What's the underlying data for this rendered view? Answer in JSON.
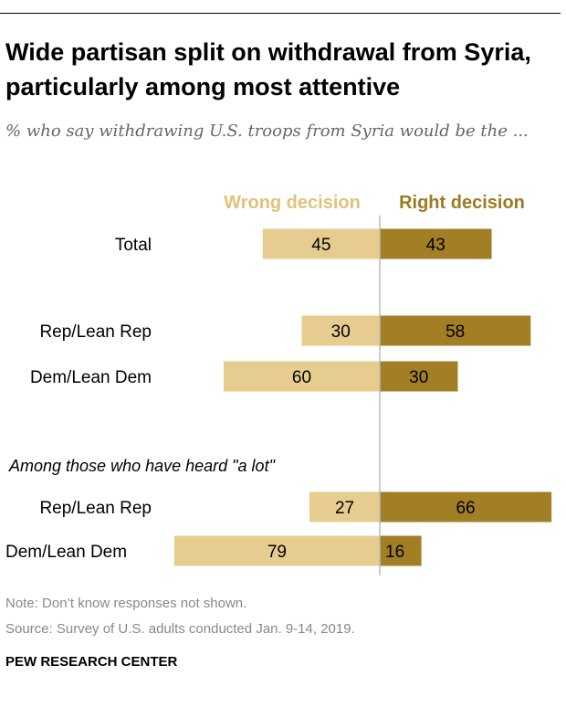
{
  "header": {
    "title": "Wide partisan split on withdrawal from Syria, particularly among most attentive",
    "subtitle": "% who say withdrawing U.S. troops from Syria would be the ..."
  },
  "colors": {
    "wrong": "#E6CC8F",
    "right": "#A27F24",
    "wrong_label": "#E1C27A",
    "right_label": "#9C7A1F",
    "axis": "#BBBBBB"
  },
  "chart_data": {
    "type": "bar",
    "orientation": "diverging-horizontal",
    "title": "Wide partisan split on withdrawal from Syria, particularly among most attentive",
    "subtitle": "% who say withdrawing U.S. troops from Syria would be the ...",
    "legend": {
      "position": "top",
      "left_label": "Wrong decision",
      "right_label": "Right decision"
    },
    "section_label": "Among those who have heard \"a lot\"",
    "categories": [
      "Total",
      "Rep/Lean Rep",
      "Dem/Lean Dem",
      "Rep/Lean Rep",
      "Dem/Lean Dem"
    ],
    "series": [
      {
        "name": "Wrong decision",
        "values": [
          45,
          30,
          60,
          27,
          79
        ]
      },
      {
        "name": "Right decision",
        "values": [
          43,
          58,
          30,
          66,
          16
        ]
      }
    ]
  },
  "footer": {
    "note": "Note: Don’t know responses not shown.",
    "source": "Source: Survey of U.S. adults conducted Jan. 9-14, 2019.",
    "brand": "PEW RESEARCH CENTER"
  }
}
